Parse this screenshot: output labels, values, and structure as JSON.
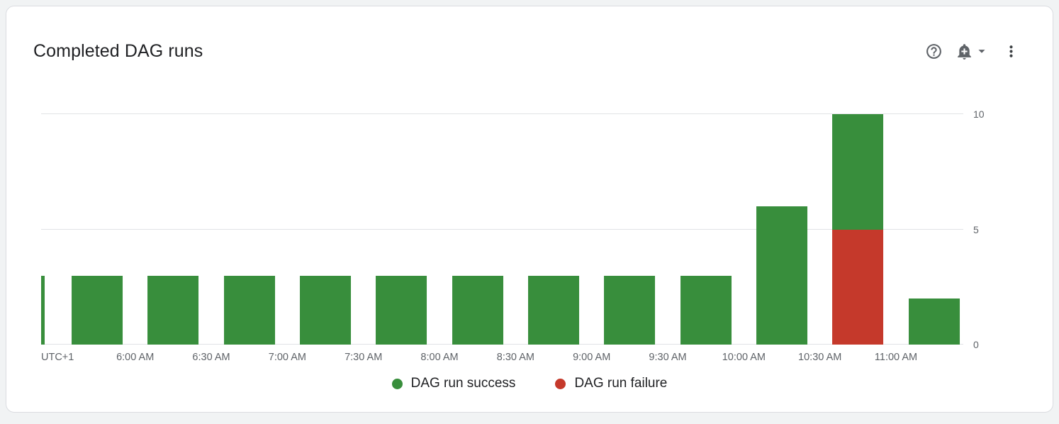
{
  "card": {
    "title": "Completed DAG runs"
  },
  "header": {
    "icons": [
      {
        "name": "help-icon"
      },
      {
        "name": "add-alert-icon"
      },
      {
        "name": "chevron-down-icon"
      },
      {
        "name": "more-vert-icon"
      }
    ]
  },
  "chart_data": {
    "type": "bar",
    "stacked": true,
    "title": "Completed DAG runs",
    "x_tick_labels": [
      "UTC+1",
      "6:00 AM",
      "6:30 AM",
      "7:00 AM",
      "7:30 AM",
      "8:00 AM",
      "8:30 AM",
      "9:00 AM",
      "9:30 AM",
      "10:00 AM",
      "10:30 AM",
      "11:00 AM"
    ],
    "ylim": [
      0,
      10
    ],
    "yticks": [
      0,
      5,
      10
    ],
    "grid": "horizontal",
    "legend_position": "bottom",
    "series": [
      {
        "name": "DAG run success",
        "color": "#388e3c",
        "values": [
          3,
          3,
          3,
          3,
          3,
          3,
          3,
          3,
          3,
          3,
          6,
          5,
          2
        ]
      },
      {
        "name": "DAG run failure",
        "color": "#c5392b",
        "values": [
          0,
          0,
          0,
          0,
          0,
          0,
          0,
          0,
          0,
          0,
          0,
          5,
          0
        ]
      }
    ],
    "legend": [
      {
        "label": "DAG run success",
        "color": "#388e3c"
      },
      {
        "label": "DAG run failure",
        "color": "#c5392b"
      }
    ]
  }
}
